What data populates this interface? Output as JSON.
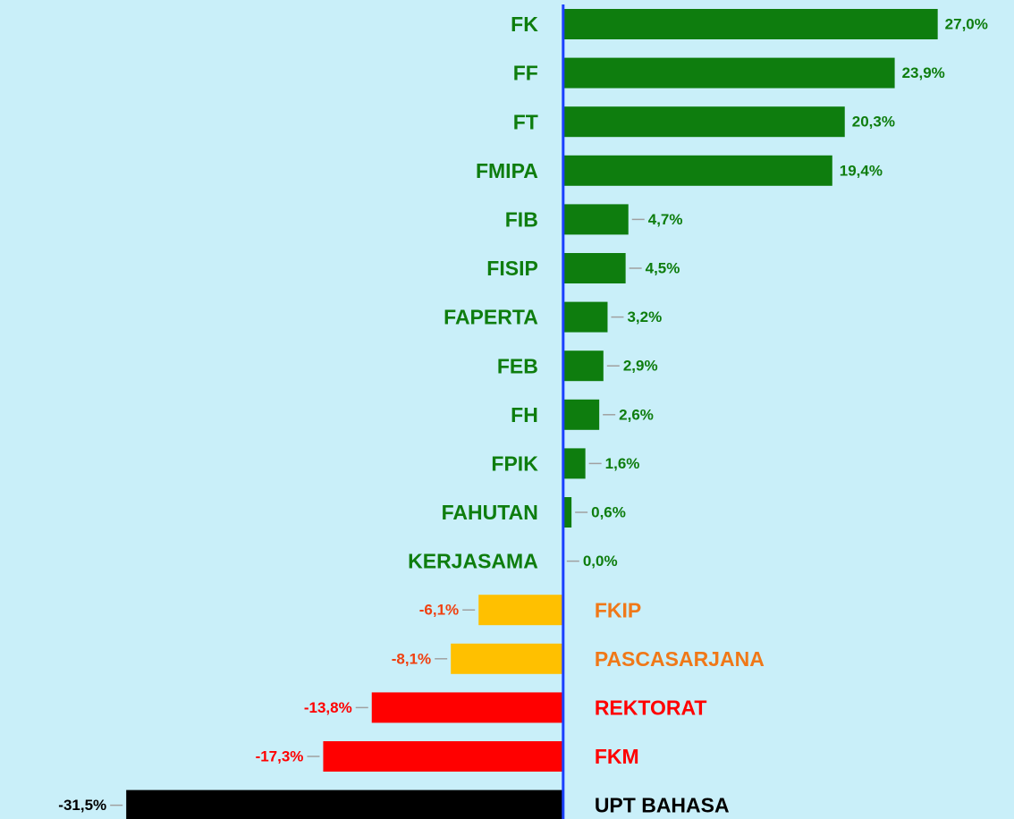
{
  "chart_data": {
    "type": "hbar",
    "categories": [
      "FK",
      "FF",
      "FT",
      "FMIPA",
      "FIB",
      "FISIP",
      "FAPERTA",
      "FEB",
      "FH",
      "FPIK",
      "FAHUTAN",
      "KERJASAMA",
      "FKIP",
      "PASCASARJANA",
      "REKTORAT",
      "FKM",
      "UPT BAHASA"
    ],
    "values": [
      27.0,
      23.9,
      20.3,
      19.4,
      4.7,
      4.5,
      3.2,
      2.9,
      2.6,
      1.6,
      0.6,
      0.0,
      -6.1,
      -8.1,
      -13.8,
      -17.3,
      -31.5
    ],
    "value_labels": [
      "27,0%",
      "23,9%",
      "20,3%",
      "19,4%",
      "4,7%",
      "4,5%",
      "3,2%",
      "2,9%",
      "2,6%",
      "1,6%",
      "0,6%",
      "0,0%",
      "-6,1%",
      "-8,1%",
      "-13,8%",
      "-17,3%",
      "-31,5%"
    ],
    "bar_colors": [
      "#0e7d0e",
      "#0e7d0e",
      "#0e7d0e",
      "#0e7d0e",
      "#0e7d0e",
      "#0e7d0e",
      "#0e7d0e",
      "#0e7d0e",
      "#0e7d0e",
      "#0e7d0e",
      "#0e7d0e",
      "#0e7d0e",
      "#ffc000",
      "#ffc000",
      "#ff0000",
      "#ff0000",
      "#000000"
    ],
    "label_colors": [
      "#0e7d0e",
      "#0e7d0e",
      "#0e7d0e",
      "#0e7d0e",
      "#0e7d0e",
      "#0e7d0e",
      "#0e7d0e",
      "#0e7d0e",
      "#0e7d0e",
      "#0e7d0e",
      "#0e7d0e",
      "#0e7d0e",
      "#f07818",
      "#f07818",
      "#ff0000",
      "#ff0000",
      "#000000"
    ],
    "value_label_colors": [
      "#0e7d0e",
      "#0e7d0e",
      "#0e7d0e",
      "#0e7d0e",
      "#0e7d0e",
      "#0e7d0e",
      "#0e7d0e",
      "#0e7d0e",
      "#0e7d0e",
      "#0e7d0e",
      "#0e7d0e",
      "#0e7d0e",
      "#f04010",
      "#f04010",
      "#ff0000",
      "#ff0000",
      "#000000"
    ],
    "xlim": [
      -40.6,
      32.5
    ],
    "axis_color": "#1a40ff"
  }
}
